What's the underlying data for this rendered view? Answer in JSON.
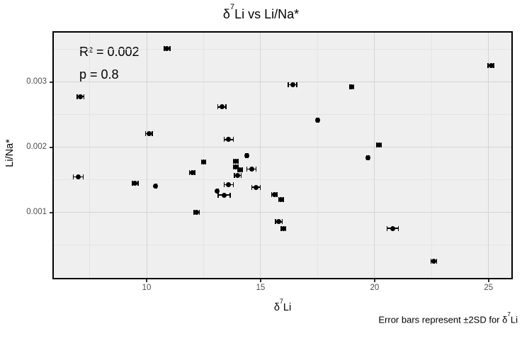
{
  "title": {
    "delta": "δ",
    "sup": "7",
    "rest": "Li vs Li/Na*"
  },
  "annotation": {
    "r_squared": "R² = 0.002",
    "p_value": "p = 0.8"
  },
  "axes": {
    "x": {
      "label_delta": "δ",
      "label_sup": "7",
      "label_rest": "Li",
      "tick_values": [
        10,
        15,
        20,
        25
      ],
      "tick_labels": [
        "10",
        "15",
        "20",
        "25"
      ],
      "minor_tick_values": [
        7.5,
        12.5,
        17.5,
        22.5
      ],
      "lim": [
        5.93,
        26.0
      ]
    },
    "y": {
      "label": "Li/Na*",
      "tick_values": [
        0.001,
        0.002,
        0.003
      ],
      "tick_labels": [
        "0.001",
        "0.002",
        "0.003"
      ],
      "minor_tick_values": [
        0.0005,
        0.0015,
        0.0025,
        0.0035
      ],
      "lim": [
        0,
        0.00376
      ]
    }
  },
  "caption": {
    "prefix": "Error bars represent ±2SD for ",
    "delta": "δ",
    "sup": "7",
    "rest": "Li"
  },
  "colors": {
    "panel_bg": "#efefef",
    "grid_major": "#d4d4d4",
    "grid_minor": "#e4e4e4",
    "point": "#000000",
    "panel_border": "#000000",
    "tick_label": "#4d4d4d"
  },
  "chart_data": {
    "type": "scatter",
    "title": "δ7Li vs Li/Na*",
    "xlabel": "δ7Li",
    "ylabel": "Li/Na*",
    "xlim": [
      5.93,
      26.0
    ],
    "ylim": [
      0,
      0.00376
    ],
    "grid": "on",
    "annotations": [
      "R² = 0.002",
      "p = 0.8"
    ],
    "error_bar_note": "Error bars represent ±2SD for δ7Li (horizontal, ± xerr)",
    "points": [
      {
        "x": 7.0,
        "y": 0.00155,
        "xerr": 0.22
      },
      {
        "x": 7.1,
        "y": 0.00278,
        "xerr": 0.15
      },
      {
        "x": 9.5,
        "y": 0.00145,
        "xerr": 0.12
      },
      {
        "x": 10.1,
        "y": 0.00221,
        "xerr": 0.15
      },
      {
        "x": 10.4,
        "y": 0.00141,
        "xerr": 0.04
      },
      {
        "x": 10.9,
        "y": 0.00352,
        "xerr": 0.12
      },
      {
        "x": 12.0,
        "y": 0.00161,
        "xerr": 0.12
      },
      {
        "x": 12.2,
        "y": 0.00101,
        "xerr": 0.12
      },
      {
        "x": 12.5,
        "y": 0.00178,
        "xerr": 0.1
      },
      {
        "x": 13.1,
        "y": 0.00133,
        "xerr": 0.04
      },
      {
        "x": 13.3,
        "y": 0.00262,
        "xerr": 0.18
      },
      {
        "x": 13.4,
        "y": 0.00127,
        "xerr": 0.26
      },
      {
        "x": 13.6,
        "y": 0.00212,
        "xerr": 0.2
      },
      {
        "x": 13.6,
        "y": 0.00143,
        "xerr": 0.2
      },
      {
        "x": 13.9,
        "y": 0.00179,
        "xerr": 0.1
      },
      {
        "x": 13.9,
        "y": 0.0017,
        "xerr": 0.1
      },
      {
        "x": 14.0,
        "y": 0.00157,
        "xerr": 0.15
      },
      {
        "x": 14.1,
        "y": 0.00166,
        "xerr": 0.1
      },
      {
        "x": 14.4,
        "y": 0.00188,
        "xerr": 0.05
      },
      {
        "x": 14.6,
        "y": 0.00167,
        "xerr": 0.2
      },
      {
        "x": 14.8,
        "y": 0.00139,
        "xerr": 0.18
      },
      {
        "x": 15.6,
        "y": 0.00128,
        "xerr": 0.12
      },
      {
        "x": 15.8,
        "y": 0.00086,
        "xerr": 0.15
      },
      {
        "x": 15.9,
        "y": 0.0012,
        "xerr": 0.1
      },
      {
        "x": 16.0,
        "y": 0.00076,
        "xerr": 0.1
      },
      {
        "x": 16.4,
        "y": 0.00296,
        "xerr": 0.18
      },
      {
        "x": 17.5,
        "y": 0.00242,
        "xerr": 0.05
      },
      {
        "x": 19.0,
        "y": 0.00293,
        "xerr": 0.08
      },
      {
        "x": 19.7,
        "y": 0.00184,
        "xerr": 0.05
      },
      {
        "x": 20.2,
        "y": 0.00204,
        "xerr": 0.1
      },
      {
        "x": 20.8,
        "y": 0.00076,
        "xerr": 0.25
      },
      {
        "x": 22.6,
        "y": 0.00026,
        "xerr": 0.12
      },
      {
        "x": 25.1,
        "y": 0.00326,
        "xerr": 0.12
      }
    ]
  }
}
